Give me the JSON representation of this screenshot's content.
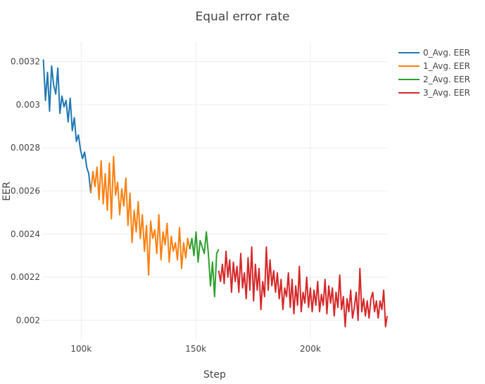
{
  "chart_data": {
    "type": "line",
    "title": "Equal error rate",
    "xlabel": "Step",
    "ylabel": "EER",
    "xlim": [
      83000,
      233500
    ],
    "ylim": [
      0.00191,
      0.00329
    ],
    "x_ticks": [
      100000,
      150000,
      200000
    ],
    "x_tick_labels": [
      "100k",
      "150k",
      "200k"
    ],
    "y_ticks": [
      0.002,
      0.0022,
      0.0024,
      0.0026,
      0.0028,
      0.003,
      0.0032
    ],
    "y_tick_labels": [
      "0.002",
      "0.0022",
      "0.0024",
      "0.0026",
      "0.0028",
      "0.003",
      "0.0032"
    ],
    "grid": true,
    "legend_position": "top-right",
    "series": [
      {
        "name": "0_Avg. EER",
        "color": "#1f77b4",
        "x": [
          83500,
          84400,
          85300,
          86200,
          87100,
          88000,
          88900,
          89800,
          90700,
          91600,
          92500,
          93400,
          94300,
          95200,
          96100,
          97000,
          97900,
          98800,
          99700,
          100600,
          101500,
          102400,
          103300,
          104200
        ],
        "y": [
          0.00321,
          0.00302,
          0.00315,
          0.00297,
          0.00318,
          0.00309,
          0.00305,
          0.00317,
          0.00296,
          0.00304,
          0.00299,
          0.00302,
          0.00292,
          0.00303,
          0.00288,
          0.00294,
          0.00283,
          0.00286,
          0.00279,
          0.00275,
          0.00278,
          0.00271,
          0.00268,
          0.00259
        ]
      },
      {
        "name": "1_Avg. EER",
        "color": "#ff7f0e",
        "x": [
          104200,
          105100,
          106000,
          106900,
          107800,
          108700,
          109600,
          110500,
          111400,
          112300,
          113200,
          114100,
          115000,
          115900,
          116800,
          117700,
          118600,
          119500,
          120400,
          121300,
          122200,
          123100,
          124000,
          124900,
          125800,
          126700,
          127600,
          128500,
          129400,
          130300,
          131200,
          132100,
          133000,
          133900,
          134800,
          135700,
          136600,
          137500,
          138400,
          139300,
          140200,
          141100,
          142000,
          142900,
          143800,
          144700,
          145600,
          146500,
          147400
        ],
        "y": [
          0.00259,
          0.00269,
          0.00262,
          0.00271,
          0.00256,
          0.00274,
          0.00254,
          0.00268,
          0.00251,
          0.00273,
          0.00247,
          0.00276,
          0.00258,
          0.00264,
          0.00249,
          0.00261,
          0.00253,
          0.00266,
          0.00244,
          0.00259,
          0.00236,
          0.00251,
          0.00241,
          0.00255,
          0.00238,
          0.00249,
          0.00232,
          0.00244,
          0.00221,
          0.00246,
          0.00238,
          0.00242,
          0.00231,
          0.00249,
          0.00228,
          0.00241,
          0.00235,
          0.00245,
          0.00227,
          0.00239,
          0.00232,
          0.00236,
          0.00228,
          0.00243,
          0.00224,
          0.00236,
          0.00229,
          0.00238,
          0.00233
        ]
      },
      {
        "name": "2_Avg. EER",
        "color": "#2ca02c",
        "x": [
          147400,
          148300,
          149200,
          150100,
          151000,
          151900,
          152800,
          153700,
          154600,
          155500,
          156400,
          157300,
          158200,
          159100,
          160000
        ],
        "y": [
          0.00233,
          0.00238,
          0.0023,
          0.00241,
          0.00227,
          0.00237,
          0.00234,
          0.00231,
          0.00241,
          0.00231,
          0.00216,
          0.00227,
          0.00211,
          0.00231,
          0.00233
        ]
      },
      {
        "name": "3_Avg. EER",
        "color": "#d62728",
        "x": [
          160000,
          160800,
          161600,
          162400,
          163200,
          164000,
          164800,
          165600,
          166400,
          167200,
          168000,
          168800,
          169600,
          170400,
          171200,
          172000,
          172800,
          173600,
          174400,
          175200,
          176000,
          176800,
          177600,
          178400,
          179200,
          180000,
          180800,
          181600,
          182400,
          183200,
          184000,
          184800,
          185600,
          186400,
          187200,
          188000,
          188800,
          189600,
          190400,
          191200,
          192000,
          192800,
          193600,
          194400,
          195200,
          196000,
          196800,
          197600,
          198400,
          199200,
          200000,
          200800,
          201600,
          202400,
          203200,
          204000,
          204800,
          205600,
          206400,
          207200,
          208000,
          208800,
          209600,
          210400,
          211200,
          212000,
          212800,
          213600,
          214400,
          215200,
          216000,
          216800,
          217600,
          218400,
          219200,
          220000,
          220800,
          221600,
          222400,
          223200,
          224000,
          224800,
          225600,
          226400,
          227200,
          228000,
          228800,
          229600,
          230400,
          231200,
          232000,
          232800,
          233500
        ],
        "y": [
          0.00223,
          0.00218,
          0.00226,
          0.00217,
          0.00232,
          0.0022,
          0.00228,
          0.00213,
          0.00227,
          0.00218,
          0.00225,
          0.00213,
          0.00231,
          0.00215,
          0.00222,
          0.0021,
          0.00229,
          0.00214,
          0.00234,
          0.00209,
          0.00226,
          0.00214,
          0.00224,
          0.00205,
          0.00218,
          0.00211,
          0.00234,
          0.00214,
          0.00228,
          0.00216,
          0.00223,
          0.00213,
          0.00222,
          0.0021,
          0.00219,
          0.00205,
          0.00215,
          0.00211,
          0.00222,
          0.00206,
          0.00219,
          0.00203,
          0.00216,
          0.00207,
          0.00225,
          0.00204,
          0.00213,
          0.00208,
          0.0022,
          0.00206,
          0.00215,
          0.00204,
          0.00214,
          0.00207,
          0.00218,
          0.00204,
          0.00212,
          0.00207,
          0.00219,
          0.00203,
          0.00216,
          0.00208,
          0.00215,
          0.00202,
          0.00213,
          0.00206,
          0.00221,
          0.00205,
          0.00211,
          0.00197,
          0.0021,
          0.00204,
          0.00214,
          0.00201,
          0.00206,
          0.00213,
          0.002,
          0.00224,
          0.00204,
          0.0021,
          0.00202,
          0.00209,
          0.00201,
          0.0021,
          0.00213,
          0.00204,
          0.00209,
          0.00201,
          0.00209,
          0.00205,
          0.00214,
          0.00197,
          0.00202
        ]
      }
    ]
  }
}
